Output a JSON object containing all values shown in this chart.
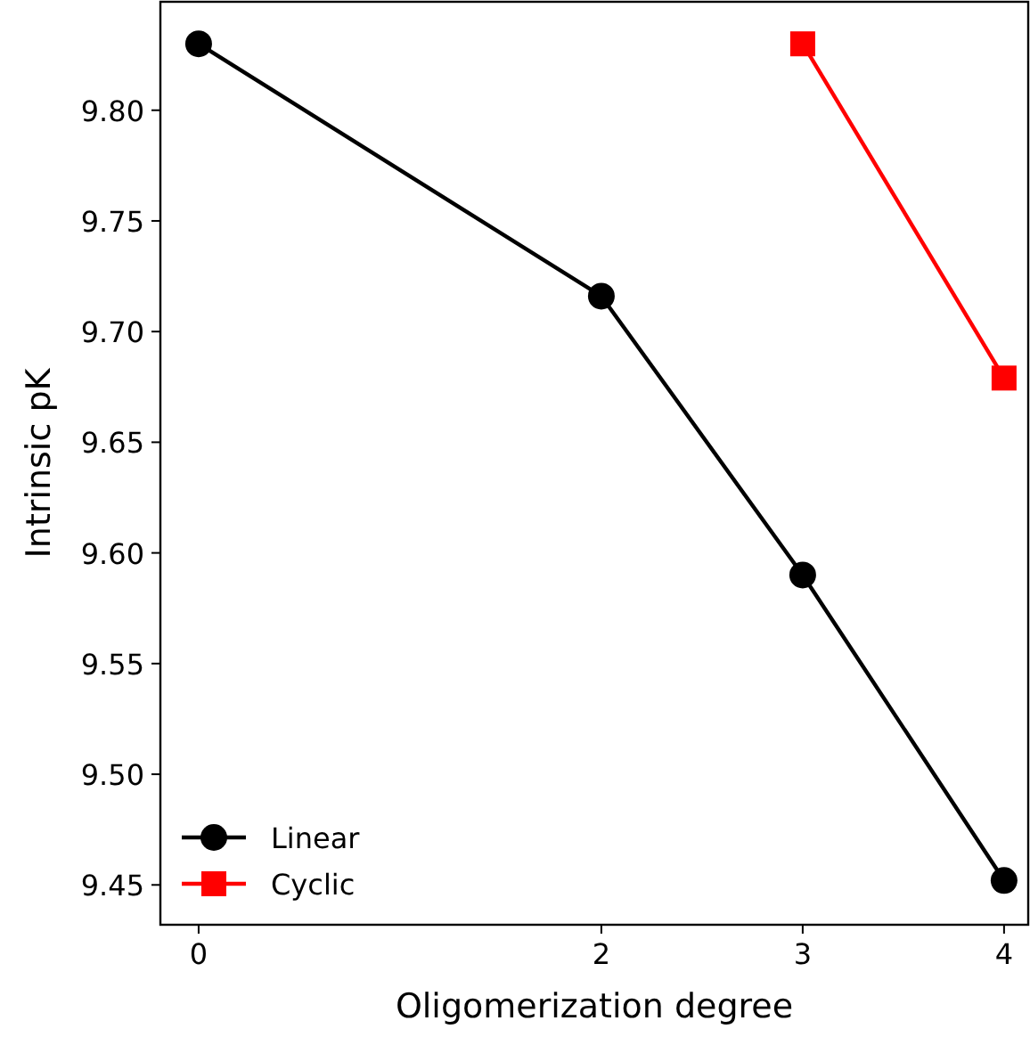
{
  "chart_data": {
    "type": "line",
    "xlabel": "Oligomerization degree",
    "ylabel": "Intrinsic pK",
    "series": [
      {
        "name": "Linear",
        "color": "#000000",
        "marker": "circle",
        "x": [
          0,
          2,
          3,
          4
        ],
        "values": [
          9.83,
          9.716,
          9.59,
          9.452
        ]
      },
      {
        "name": "Cyclic",
        "color": "#ff0000",
        "marker": "square",
        "x": [
          3,
          4
        ],
        "values": [
          9.83,
          9.679
        ]
      }
    ],
    "xlim": [
      -0.19,
      4.12
    ],
    "xticks": [
      0,
      2,
      3,
      4
    ],
    "ylim": [
      9.432,
      9.849
    ],
    "yticks": [
      {
        "value": 9.45,
        "label": "9.45"
      },
      {
        "value": 9.5,
        "label": "9.50"
      },
      {
        "value": 9.55,
        "label": "9.55"
      },
      {
        "value": 9.6,
        "label": "9.60"
      },
      {
        "value": 9.65,
        "label": "9.65"
      },
      {
        "value": 9.7,
        "label": "9.70"
      },
      {
        "value": 9.75,
        "label": "9.75"
      },
      {
        "value": 9.8,
        "label": "9.80"
      }
    ],
    "grid": false,
    "legend": "bottom left",
    "line_style": "solid"
  }
}
